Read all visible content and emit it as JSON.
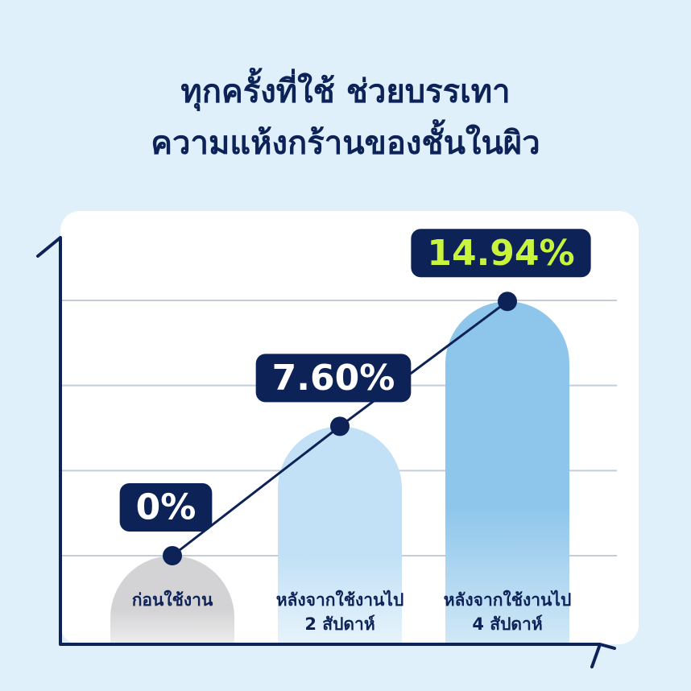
{
  "chart_data": {
    "type": "bar-line",
    "title": "ทุกครั้งที่ใช้ ช่วยบรรเทา\nความแห้งกร้านของชั้นในผิว",
    "categories": [
      "ก่อนใช้งาน",
      "หลังจากใช้งานไป\n2 สัปดาห์",
      "หลังจากใช้งานไป\n4 สัปดาห์"
    ],
    "values": [
      0,
      7.6,
      14.94
    ],
    "value_labels": [
      "0%",
      "7.60%",
      "14.94%"
    ],
    "colors": [
      "#d3d3d5",
      "#c3e1f6",
      "#8ec6eb"
    ],
    "line_color": "#0d2257",
    "highlight_label_color": "#c8f53c",
    "ylim": [
      0,
      15
    ],
    "yticks": [
      0,
      5,
      10,
      15
    ],
    "grid": true
  }
}
